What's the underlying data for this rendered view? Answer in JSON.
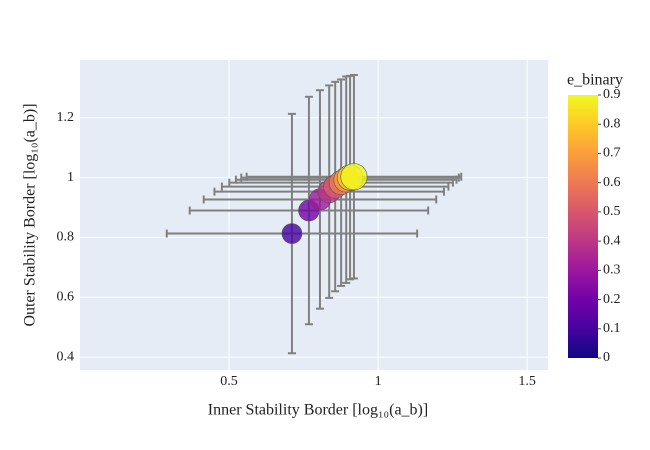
{
  "chart_data": {
    "type": "scatter",
    "x_label": "Inner Stability Border [log₁₀(a_b)]",
    "y_label": "Outer Stability Border [log₁₀(a_b)]",
    "series": [
      {
        "x": [
          0.711,
          0.768,
          0.805,
          0.836,
          0.856,
          0.876,
          0.893,
          0.906,
          0.919
        ],
        "y": [
          0.813,
          0.89,
          0.927,
          0.953,
          0.97,
          0.983,
          0.993,
          1.0,
          1.003
        ],
        "error_x": [
          0.42,
          0.4,
          0.39,
          0.385,
          0.38,
          0.375,
          0.37,
          0.365,
          0.36
        ],
        "error_y": [
          0.4,
          0.38,
          0.365,
          0.355,
          0.35,
          0.345,
          0.345,
          0.34,
          0.34
        ],
        "e_binary": [
          0.1,
          0.2,
          0.3,
          0.4,
          0.5,
          0.6,
          0.7,
          0.8,
          0.9
        ],
        "error_color": "#808080"
      }
    ],
    "xlim": [
      0.0,
      1.57
    ],
    "ylim": [
      0.357,
      1.393
    ],
    "xticks": [
      0.5,
      1,
      1.5
    ],
    "yticks": [
      0.4,
      0.6,
      0.8,
      1,
      1.2
    ],
    "grid": true,
    "colorbar": {
      "title": "e_binary",
      "lim": [
        0,
        0.9
      ],
      "ticks": [
        0,
        0.1,
        0.2,
        0.3,
        0.4,
        0.5,
        0.6,
        0.7,
        0.8,
        0.9
      ],
      "colorscale": [
        "#0d0887",
        "#46039f",
        "#7201a8",
        "#9c179e",
        "#bd3786",
        "#d8576b",
        "#ed7953",
        "#fb9f3a",
        "#fdca26",
        "#f0f921"
      ]
    }
  }
}
